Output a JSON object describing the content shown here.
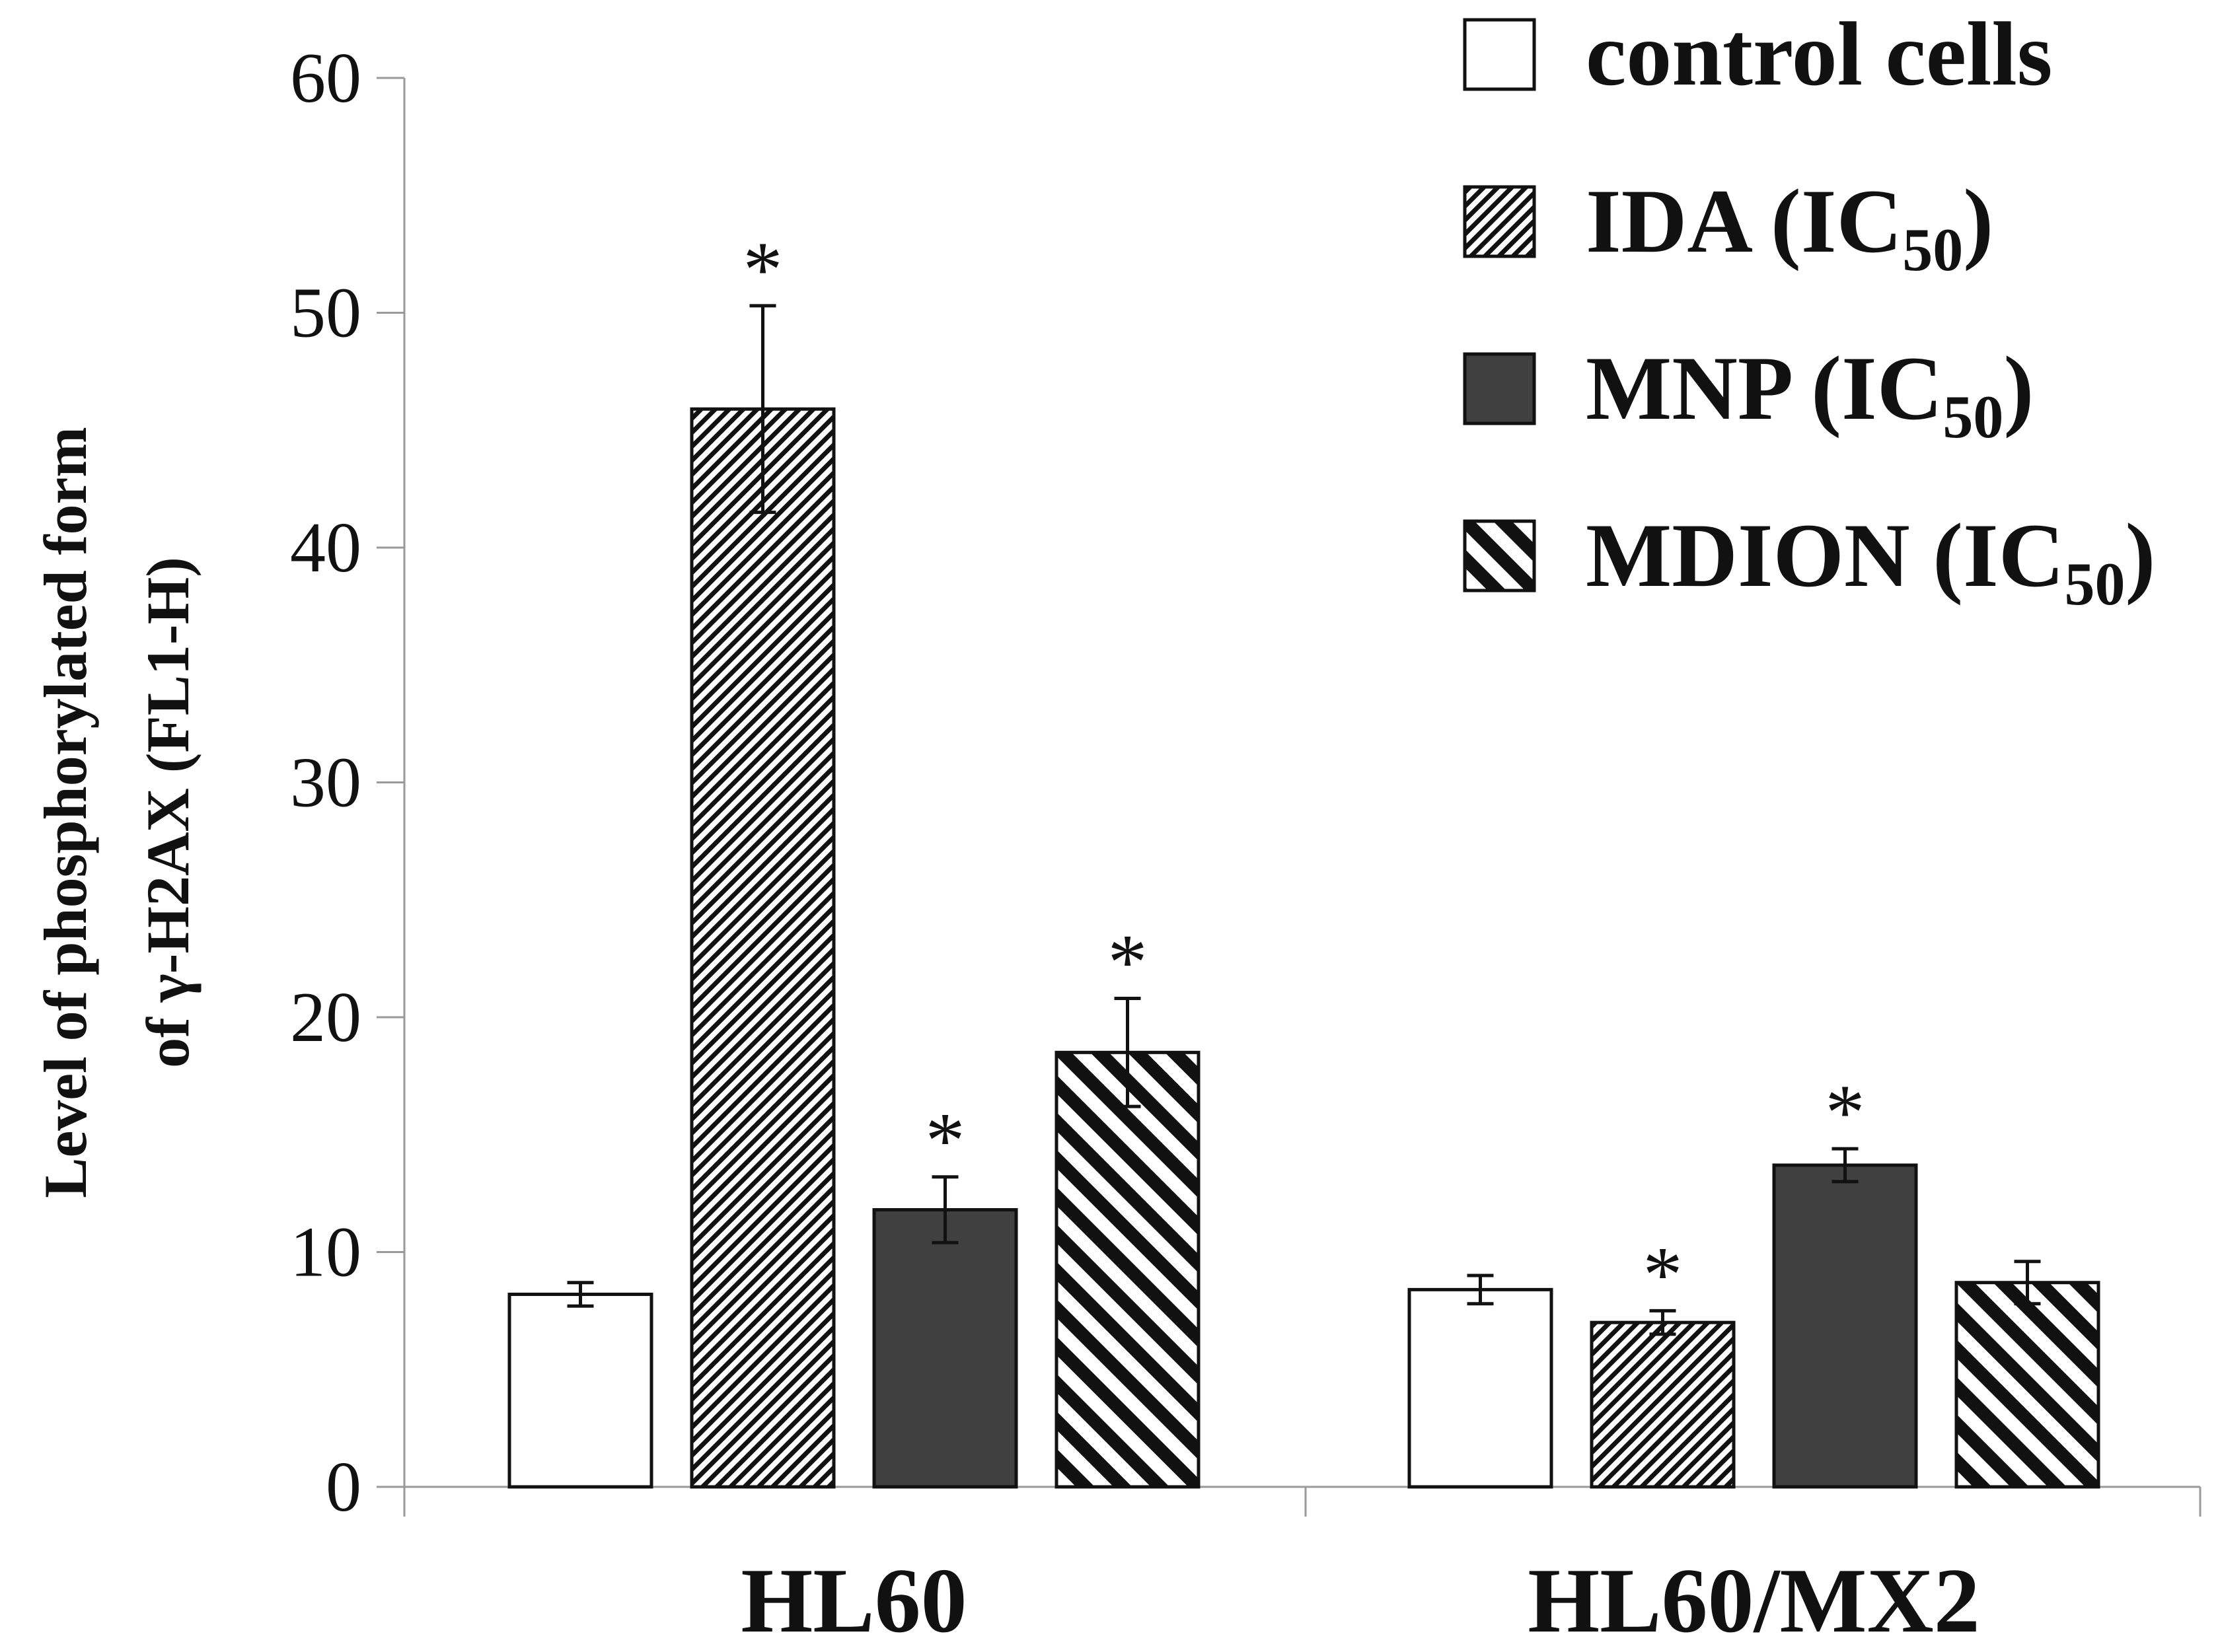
{
  "chart_data": {
    "type": "bar",
    "title": "",
    "xlabel": "",
    "ylabel_lines": [
      "Level of phosphorylated form",
      "of γ-H2AX (FL1-H)"
    ],
    "ylim": [
      0,
      60
    ],
    "yticks": [
      0,
      10,
      20,
      30,
      40,
      50,
      60
    ],
    "categories": [
      "HL60",
      "HL60/MX2"
    ],
    "series": [
      {
        "name": "control cells",
        "legend_main": "control cells",
        "legend_sub": "",
        "legend_tail": "",
        "pattern": "none",
        "fill": "#ffffff",
        "values": [
          8.2,
          8.4
        ],
        "errors": [
          0.5,
          0.6
        ],
        "significant": [
          false,
          false
        ]
      },
      {
        "name": "IDA (IC50)",
        "legend_main": "IDA (IC",
        "legend_sub": "50",
        "legend_tail": ")",
        "pattern": "dense-diagonal",
        "fill": "#ffffff",
        "values": [
          45.9,
          7.0
        ],
        "errors": [
          4.4,
          0.5
        ],
        "significant": [
          true,
          true
        ]
      },
      {
        "name": "MNP (IC50)",
        "legend_main": "MNP (IC",
        "legend_sub": "50",
        "legend_tail": ")",
        "pattern": "solid",
        "fill": "#404040",
        "values": [
          11.8,
          13.7
        ],
        "errors": [
          1.4,
          0.7
        ],
        "significant": [
          true,
          true
        ]
      },
      {
        "name": "MDION (IC50)",
        "legend_main": "MDION (IC",
        "legend_sub": "50",
        "legend_tail": ")",
        "pattern": "wide-diagonal",
        "fill": "#ffffff",
        "values": [
          18.5,
          8.7
        ],
        "errors": [
          2.3,
          0.9
        ],
        "significant": [
          true,
          false
        ]
      }
    ],
    "significance_marker": "*",
    "legend_position": "top-right",
    "grid": false,
    "colors": {
      "axis": "#9a9a9a",
      "bar_edge": "#111111",
      "text": "#111111"
    }
  }
}
